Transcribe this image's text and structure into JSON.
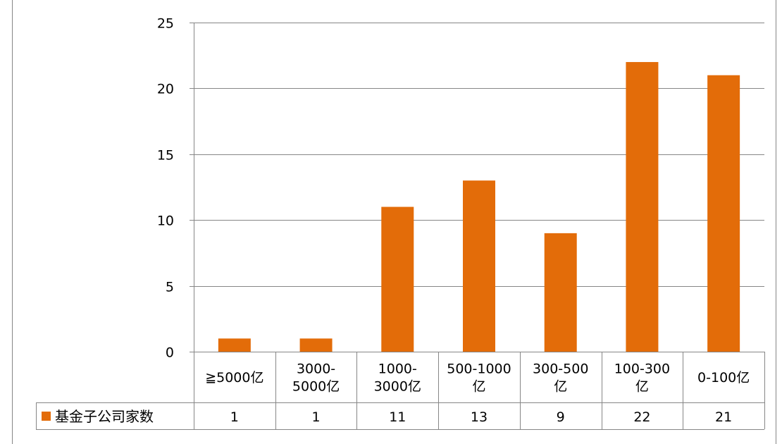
{
  "chart_data": {
    "type": "bar",
    "categories": [
      [
        "≧5000亿"
      ],
      [
        "3000-",
        "5000亿"
      ],
      [
        "1000-",
        "3000亿"
      ],
      [
        "500-1000",
        "亿"
      ],
      [
        "300-500",
        "亿"
      ],
      [
        "100-300",
        "亿"
      ],
      [
        "0-100亿"
      ]
    ],
    "series": [
      {
        "name": "基金子公司家数",
        "values": [
          1,
          1,
          11,
          13,
          9,
          22,
          21
        ],
        "color": "#E36C09"
      }
    ],
    "yticks": [
      0,
      5,
      10,
      15,
      20,
      25
    ],
    "ylim": [
      0,
      25
    ],
    "grid": true,
    "legend_placement": "data-table-left",
    "data_table": true,
    "colors": {
      "bar": "#E36C09",
      "grid": "#868686",
      "axis": "#868686",
      "frame": "#868686"
    }
  }
}
